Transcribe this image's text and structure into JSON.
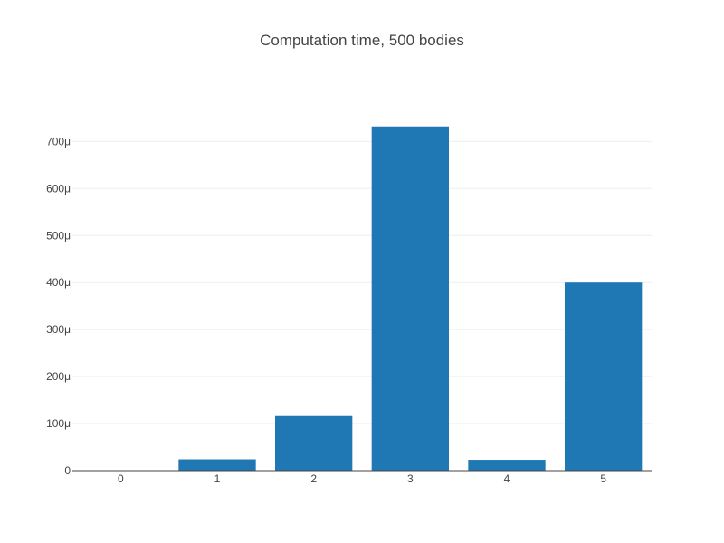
{
  "chart_data": {
    "type": "bar",
    "title": "Computation time, 500 bodies",
    "xlabel": "",
    "ylabel": "",
    "categories": [
      "0",
      "1",
      "2",
      "3",
      "4",
      "5"
    ],
    "values": [
      5e-07,
      2.4e-05,
      0.000116,
      0.000732,
      2.3e-05,
      0.0004
    ],
    "ylim": [
      0,
      0.00077
    ],
    "yticks": [
      {
        "value": 0,
        "label": "0"
      },
      {
        "value": 0.0001,
        "label": "100μ"
      },
      {
        "value": 0.0002,
        "label": "200μ"
      },
      {
        "value": 0.0003,
        "label": "300μ"
      },
      {
        "value": 0.0004,
        "label": "400μ"
      },
      {
        "value": 0.0005,
        "label": "500μ"
      },
      {
        "value": 0.0006,
        "label": "600μ"
      },
      {
        "value": 0.0007,
        "label": "700μ"
      }
    ],
    "grid": true,
    "legend": "none",
    "bar_color": "#1f77b4"
  }
}
